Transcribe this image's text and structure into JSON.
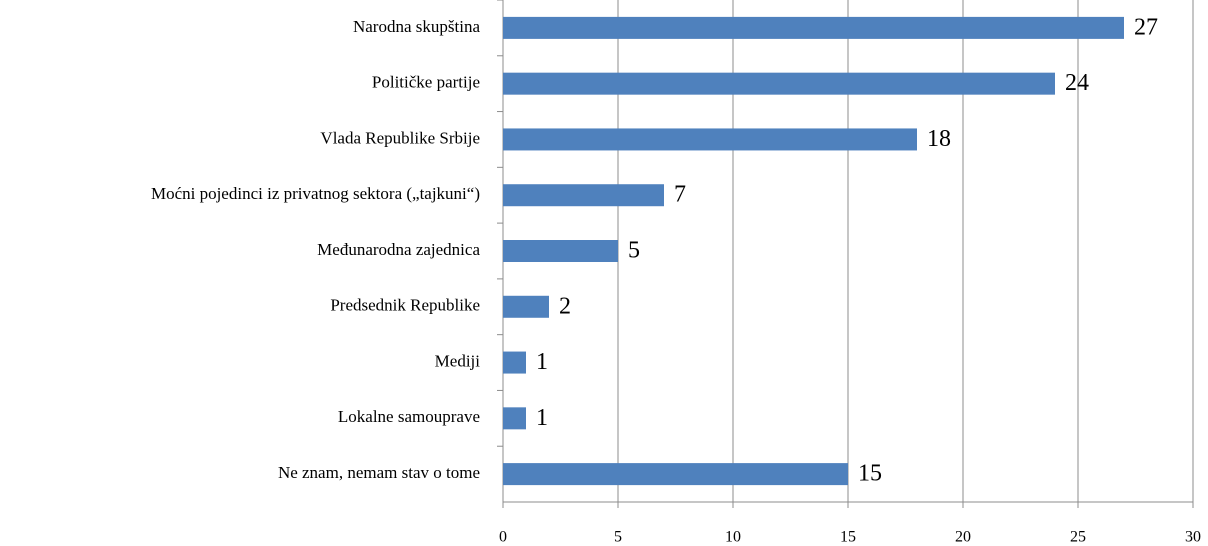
{
  "chart_data": {
    "type": "bar",
    "orientation": "horizontal",
    "categories": [
      "Narodna skupština",
      "Političke partije",
      "Vlada Republike Srbije",
      "Moćni pojedinci iz privatnog sektora („tajkuni“)",
      "Međunarodna zajednica",
      "Predsednik Republike",
      "Mediji",
      "Lokalne samouprave",
      "Ne znam, nemam stav o tome"
    ],
    "values": [
      27,
      24,
      18,
      7,
      5,
      2,
      1,
      1,
      15
    ],
    "color": "#4f81bd",
    "xlim": [
      0,
      30
    ],
    "xticks": [
      0,
      5,
      10,
      15,
      20,
      25,
      30
    ],
    "grid": true
  }
}
